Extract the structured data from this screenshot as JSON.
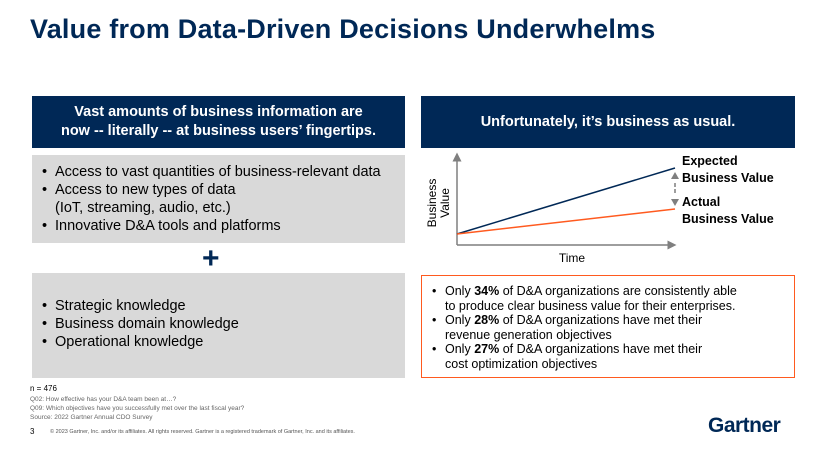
{
  "title": "Value from Data-Driven Decisions Underwhelms",
  "left": {
    "header": [
      "Vast amounts of business information are",
      "now -- literally -- at business users’ fingertips."
    ],
    "box1": [
      "Access to vast quantities of business-relevant data",
      "Access to new types of data",
      "(IoT, streaming, audio, etc.)",
      "Innovative D&A tools and platforms"
    ],
    "plus": "+",
    "box2": [
      "Strategic knowledge",
      "Business domain knowledge",
      "Operational knowledge"
    ]
  },
  "right": {
    "header": "Unfortunately, it’s business as usual.",
    "diagram": {
      "ylabel": [
        "Business",
        "Value"
      ],
      "xlabel": "Time",
      "expected": [
        "Expected",
        "Business Value"
      ],
      "actual": [
        "Actual",
        "Business Value"
      ],
      "colors": {
        "expected": "#002856",
        "actual": "#ff5a1f"
      }
    },
    "bullets": [
      {
        "pre": "Only ",
        "pct": "34%",
        "post": " of D&A organizations are consistently able",
        "cont": "to produce clear business value for their enterprises."
      },
      {
        "pre": "Only ",
        "pct": "28%",
        "post": " of D&A organizations have met their",
        "cont": "revenue generation objectives"
      },
      {
        "pre": "Only ",
        "pct": "27%",
        "post": " of D&A organizations have met their",
        "cont": "cost optimization objectives"
      }
    ]
  },
  "footer": {
    "n": "n = 476",
    "q1": "Q02: How effective has your D&A team been at…?",
    "q2": "Q09: Which objectives have you successfully met over the last fiscal year?",
    "source": "Source: 2022 Gartner Annual CDO Survey",
    "page": "3",
    "copyright": "© 2023 Gartner, Inc. and/or its affiliates. All rights reserved. Gartner is a registered trademark of Gartner, Inc. and its affiliates.",
    "logo": "Gartner"
  }
}
